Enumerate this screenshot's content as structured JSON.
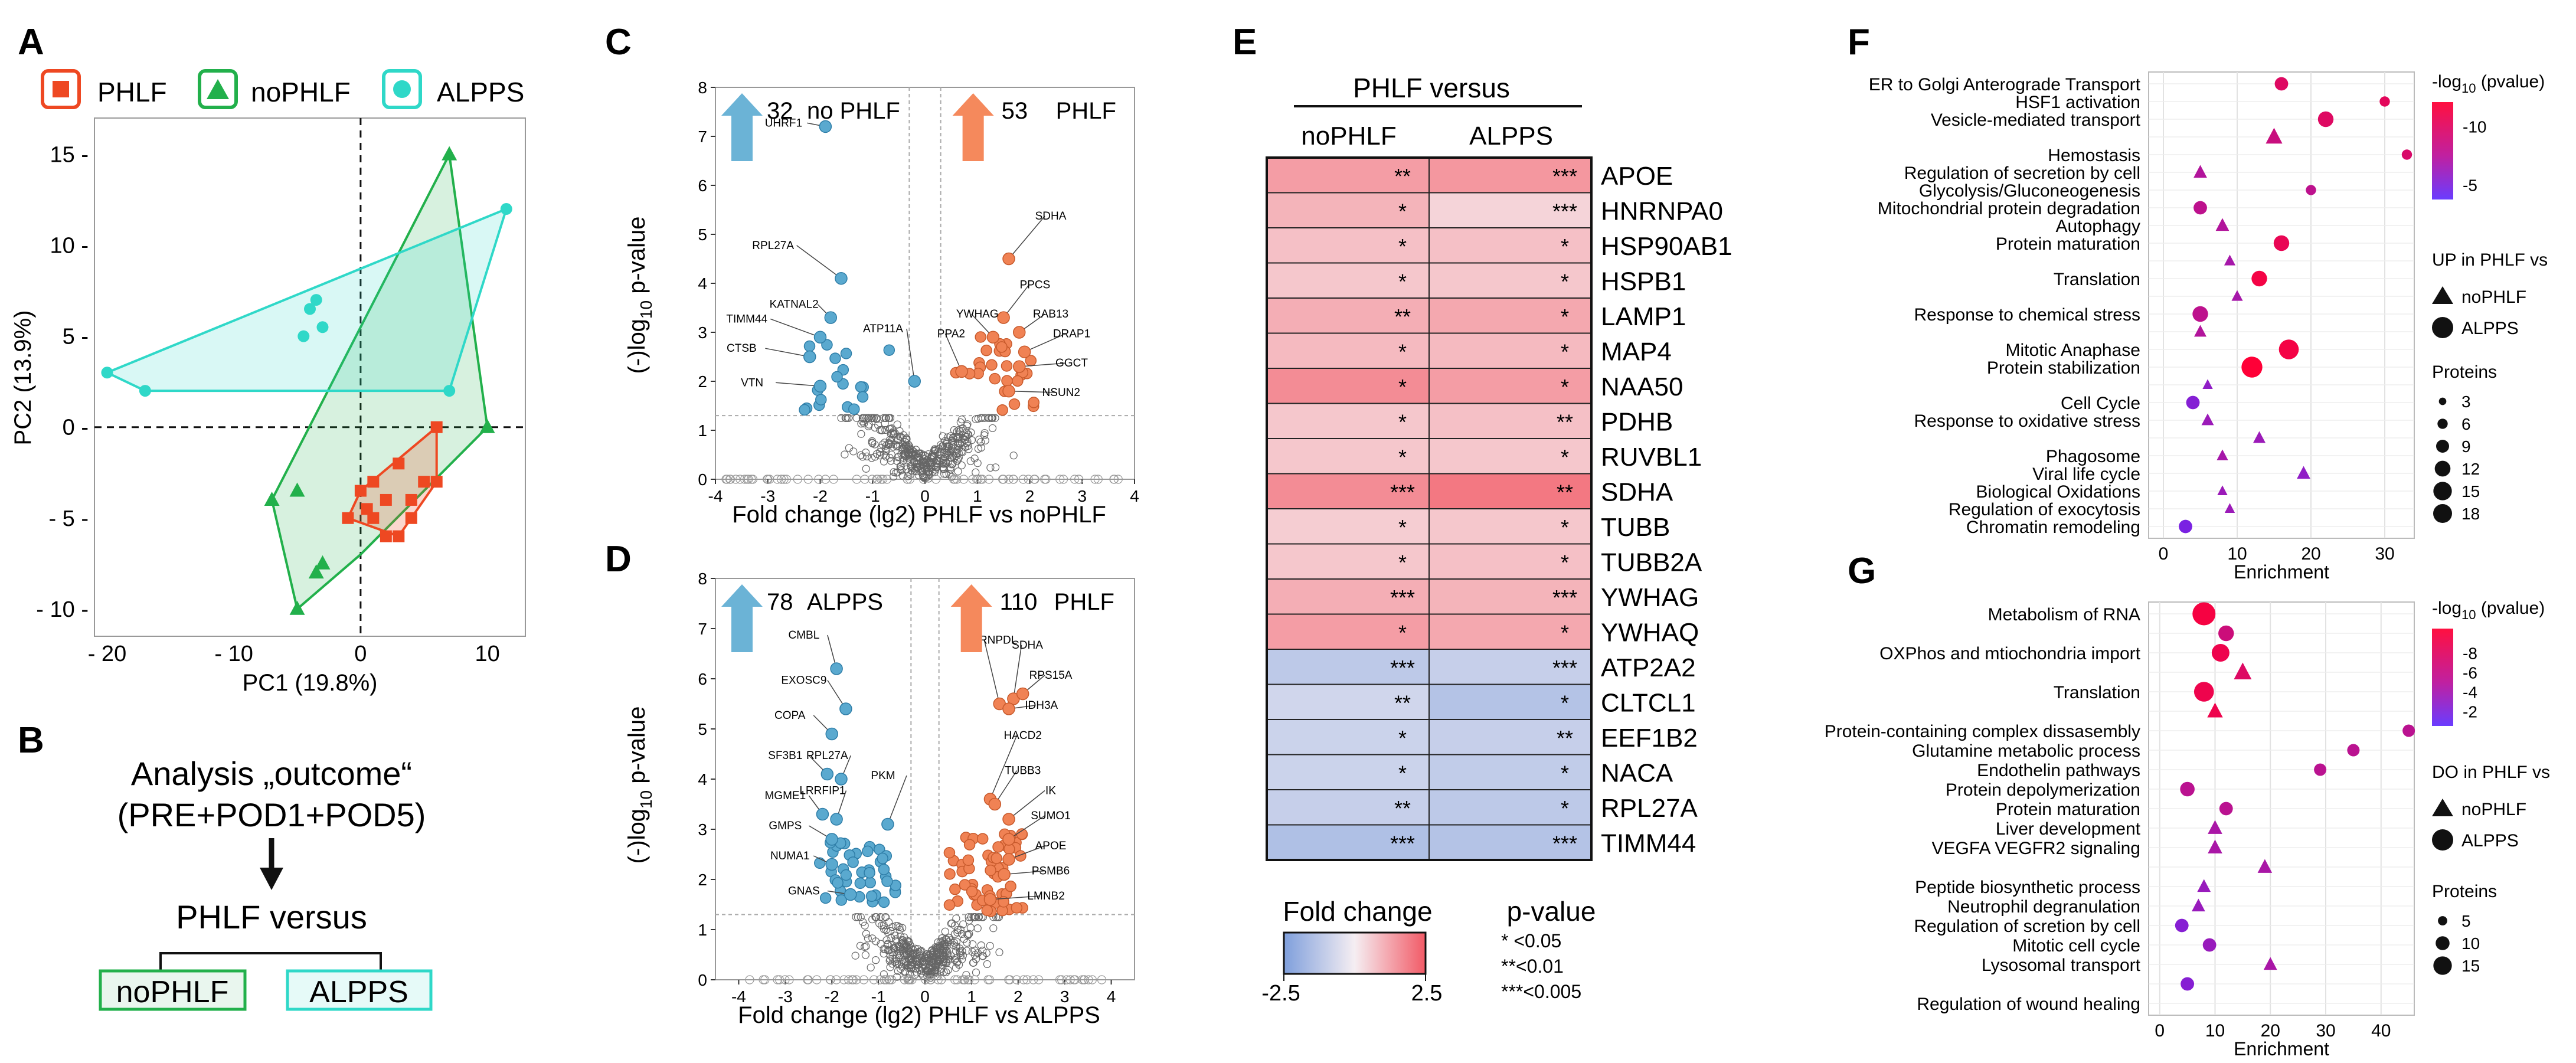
{
  "panelA": {
    "letter": "A",
    "legend": [
      "PHLF",
      "noPHLF",
      "ALPPS"
    ],
    "colors": {
      "PHLF": "#ee4822",
      "noPHLF": "#22b04b",
      "ALPPS": "#2fd8c8"
    },
    "xlabel": "PC1 (19.8%)",
    "ylabel": "PC2 (13.9%)",
    "xticks": [
      {
        "v": -20,
        "t": "- 20"
      },
      {
        "v": -10,
        "t": "- 10"
      },
      {
        "v": 0,
        "t": "0"
      },
      {
        "v": 10,
        "t": "10"
      }
    ],
    "yticks": [
      {
        "v": 15,
        "t": "15 -"
      },
      {
        "v": 10,
        "t": "10 -"
      },
      {
        "v": 5,
        "t": "5 -"
      },
      {
        "v": 0,
        "t": "0 -"
      },
      {
        "v": -5,
        "t": "- 5 -"
      },
      {
        "v": -10,
        "t": "- 10 -"
      }
    ],
    "xlim": [
      -21,
      13
    ],
    "ylim": [
      -11.5,
      17
    ],
    "hulls": {
      "noPHLF": [
        [
          -5,
          -10
        ],
        [
          -7,
          -4
        ],
        [
          7,
          15
        ],
        [
          10,
          0
        ],
        [
          0,
          -7
        ]
      ],
      "ALPPS": [
        [
          -20,
          3
        ],
        [
          -17,
          2
        ],
        [
          7,
          2
        ],
        [
          11.5,
          12
        ]
      ],
      "PHLF": [
        [
          0,
          -3.5
        ],
        [
          6,
          0
        ],
        [
          6,
          -3
        ],
        [
          3,
          -6
        ],
        [
          -1,
          -5
        ]
      ]
    },
    "points": {
      "PHLF": [
        [
          0,
          -3.5
        ],
        [
          1,
          -3
        ],
        [
          1,
          -5
        ],
        [
          2,
          -4
        ],
        [
          3,
          -2
        ],
        [
          2,
          -6
        ],
        [
          4,
          -5
        ],
        [
          5,
          -3
        ],
        [
          6,
          0
        ],
        [
          6,
          -3
        ],
        [
          3,
          -6
        ],
        [
          -1,
          -5
        ],
        [
          0.5,
          -4.5
        ],
        [
          4,
          -4
        ]
      ],
      "noPHLF": [
        [
          -5,
          -10
        ],
        [
          -7,
          -4
        ],
        [
          -5,
          -3.5
        ],
        [
          7,
          15
        ],
        [
          10,
          0
        ],
        [
          -3,
          -7.5
        ],
        [
          -3.5,
          -8
        ]
      ],
      "ALPPS": [
        [
          -20,
          3
        ],
        [
          -17,
          2
        ],
        [
          -4,
          6.5
        ],
        [
          -3.5,
          7
        ],
        [
          -4.5,
          5
        ],
        [
          -3,
          5.5
        ],
        [
          7,
          2
        ],
        [
          11.5,
          12
        ]
      ]
    }
  },
  "panelB": {
    "letter": "B",
    "line1": "Analysis „outcome“",
    "line2": "(PRE+POD1+POD5)",
    "versus": "PHLF versus",
    "left": "noPHLF",
    "right": "ALPPS"
  },
  "panelC": {
    "letter": "C",
    "downCount": "32",
    "downLabel": "no PHLF",
    "upCount": "53",
    "upLabel": "PHLF",
    "xlabel": "Fold change (lg2) PHLF vs noPHLF",
    "ylabel_prefix": "(-)log",
    "ylabel_sub": "10",
    "ylabel_suffix": " p-value",
    "xlim": [
      -4,
      4
    ],
    "ylim": [
      0,
      8
    ],
    "xticks": [
      -4,
      -3,
      -2,
      -1,
      0,
      1,
      2,
      3,
      4
    ],
    "yticks": [
      0,
      1,
      2,
      3,
      4,
      5,
      6,
      7,
      8
    ],
    "labels": [
      {
        "t": "UHRF1",
        "x": -1.9,
        "y": 7.2,
        "lx": -2.7,
        "ly": 7.2
      },
      {
        "t": "RPL27A",
        "x": -1.6,
        "y": 4.1,
        "lx": -2.9,
        "ly": 4.7
      },
      {
        "t": "KATNAL2",
        "x": -1.8,
        "y": 3.3,
        "lx": -2.5,
        "ly": 3.5
      },
      {
        "t": "TIMM44",
        "x": -2.0,
        "y": 2.9,
        "lx": -3.4,
        "ly": 3.2
      },
      {
        "t": "ATP11A",
        "x": -0.2,
        "y": 2.0,
        "lx": -0.8,
        "ly": 3.0
      },
      {
        "t": "CTSB",
        "x": -2.2,
        "y": 2.5,
        "lx": -3.5,
        "ly": 2.6
      },
      {
        "t": "VTN",
        "x": -2.0,
        "y": 1.9,
        "lx": -3.3,
        "ly": 1.9
      },
      {
        "t": "SDHA",
        "x": 1.6,
        "y": 4.5,
        "lx": 2.4,
        "ly": 5.3
      },
      {
        "t": "PPCS",
        "x": 1.5,
        "y": 3.3,
        "lx": 2.1,
        "ly": 3.9
      },
      {
        "t": "YWHAG",
        "x": 1.3,
        "y": 2.9,
        "lx": 1.0,
        "ly": 3.3
      },
      {
        "t": "RAB13",
        "x": 1.8,
        "y": 3.0,
        "lx": 2.4,
        "ly": 3.3
      },
      {
        "t": "PPA2",
        "x": 0.7,
        "y": 2.2,
        "lx": 0.5,
        "ly": 2.9
      },
      {
        "t": "DRAP1",
        "x": 1.9,
        "y": 2.6,
        "lx": 2.8,
        "ly": 2.9
      },
      {
        "t": "GGCT",
        "x": 1.8,
        "y": 2.3,
        "lx": 2.8,
        "ly": 2.3
      },
      {
        "t": "NSUN2",
        "x": 1.6,
        "y": 1.8,
        "lx": 2.6,
        "ly": 1.7
      }
    ]
  },
  "panelD": {
    "letter": "D",
    "downCount": "78",
    "downLabel": "ALPPS",
    "upCount": "110",
    "upLabel": "PHLF",
    "xlabel": "Fold change (lg2) PHLF vs ALPPS",
    "ylabel_prefix": "(-)log",
    "ylabel_sub": "10",
    "ylabel_suffix": " p-value",
    "xlim": [
      -4.5,
      4.5
    ],
    "ylim": [
      0,
      8
    ],
    "xticks": [
      -4,
      -3,
      -2,
      -1,
      0,
      1,
      2,
      3,
      4
    ],
    "yticks": [
      0,
      1,
      2,
      3,
      4,
      5,
      6,
      7,
      8
    ],
    "labels": [
      {
        "t": "CMBL",
        "x": -1.9,
        "y": 6.2,
        "lx": -2.6,
        "ly": 6.8
      },
      {
        "t": "EXOSC9",
        "x": -1.7,
        "y": 5.4,
        "lx": -2.6,
        "ly": 5.9
      },
      {
        "t": "COPA",
        "x": -2.0,
        "y": 4.9,
        "lx": -2.9,
        "ly": 5.2
      },
      {
        "t": "SF3B1",
        "x": -2.1,
        "y": 4.1,
        "lx": -3.0,
        "ly": 4.4
      },
      {
        "t": "RPL27A",
        "x": -1.8,
        "y": 4.0,
        "lx": -2.1,
        "ly": 4.4
      },
      {
        "t": "PKM",
        "x": -0.8,
        "y": 3.1,
        "lx": -0.9,
        "ly": 4.0
      },
      {
        "t": "MGME1",
        "x": -2.2,
        "y": 3.3,
        "lx": -3.0,
        "ly": 3.6
      },
      {
        "t": "LRRFIP1",
        "x": -1.9,
        "y": 3.2,
        "lx": -2.2,
        "ly": 3.7
      },
      {
        "t": "GMPS",
        "x": -2.0,
        "y": 2.8,
        "lx": -3.0,
        "ly": 3.0
      },
      {
        "t": "NUMA1",
        "x": -2.0,
        "y": 2.3,
        "lx": -2.9,
        "ly": 2.4
      },
      {
        "t": "GNAS",
        "x": -1.6,
        "y": 1.7,
        "lx": -2.6,
        "ly": 1.7
      },
      {
        "t": "HNRNPDL",
        "x": 1.6,
        "y": 5.5,
        "lx": 1.4,
        "ly": 6.7
      },
      {
        "t": "SDHA",
        "x": 1.9,
        "y": 5.6,
        "lx": 2.2,
        "ly": 6.6
      },
      {
        "t": "RPS15A",
        "x": 2.1,
        "y": 5.7,
        "lx": 2.7,
        "ly": 6.0
      },
      {
        "t": "IDH3A",
        "x": 1.8,
        "y": 5.4,
        "lx": 2.5,
        "ly": 5.4
      },
      {
        "t": "HACD2",
        "x": 1.4,
        "y": 3.6,
        "lx": 2.1,
        "ly": 4.8
      },
      {
        "t": "TUBB3",
        "x": 1.5,
        "y": 3.5,
        "lx": 2.1,
        "ly": 4.1
      },
      {
        "t": "IK",
        "x": 1.8,
        "y": 3.2,
        "lx": 2.7,
        "ly": 3.7
      },
      {
        "t": "SUMO1",
        "x": 1.8,
        "y": 2.8,
        "lx": 2.7,
        "ly": 3.2
      },
      {
        "t": "APOE",
        "x": 1.8,
        "y": 2.4,
        "lx": 2.7,
        "ly": 2.6
      },
      {
        "t": "PSMB6",
        "x": 1.7,
        "y": 2.1,
        "lx": 2.7,
        "ly": 2.1
      },
      {
        "t": "LMNB2",
        "x": 1.4,
        "y": 1.6,
        "lx": 2.6,
        "ly": 1.6
      }
    ]
  },
  "panelE": {
    "letter": "E",
    "title": "PHLF versus",
    "columns": [
      "noPHLF",
      "ALPPS"
    ],
    "rows": [
      {
        "g": "APOE",
        "v": [
          1.2,
          1.3
        ],
        "s": [
          "**",
          "***"
        ]
      },
      {
        "g": "HNRNPA0",
        "v": [
          0.8,
          0.3
        ],
        "s": [
          "*",
          "***"
        ]
      },
      {
        "g": "HSP90AB1",
        "v": [
          0.6,
          0.6
        ],
        "s": [
          "*",
          "*"
        ]
      },
      {
        "g": "HSPB1",
        "v": [
          0.5,
          0.5
        ],
        "s": [
          "*",
          "*"
        ]
      },
      {
        "g": "LAMP1",
        "v": [
          0.9,
          1.0
        ],
        "s": [
          "**",
          "*"
        ]
      },
      {
        "g": "MAP4",
        "v": [
          0.7,
          0.7
        ],
        "s": [
          "*",
          "*"
        ]
      },
      {
        "g": "NAA50",
        "v": [
          1.5,
          1.2
        ],
        "s": [
          "*",
          "*"
        ]
      },
      {
        "g": "PDHB",
        "v": [
          0.5,
          0.6
        ],
        "s": [
          "*",
          "**"
        ]
      },
      {
        "g": "RUVBL1",
        "v": [
          0.5,
          0.5
        ],
        "s": [
          "*",
          "*"
        ]
      },
      {
        "g": "SDHA",
        "v": [
          1.5,
          1.9
        ],
        "s": [
          "***",
          "**"
        ]
      },
      {
        "g": "TUBB",
        "v": [
          0.4,
          0.5
        ],
        "s": [
          "*",
          "*"
        ]
      },
      {
        "g": "TUBB2A",
        "v": [
          0.5,
          0.6
        ],
        "s": [
          "*",
          "*"
        ]
      },
      {
        "g": "YWHAG",
        "v": [
          0.9,
          0.8
        ],
        "s": [
          "***",
          "***"
        ]
      },
      {
        "g": "YWHAQ",
        "v": [
          1.2,
          1.0
        ],
        "s": [
          "*",
          "*"
        ]
      },
      {
        "g": "ATP2A2",
        "v": [
          -1.0,
          -0.8
        ],
        "s": [
          "***",
          "***"
        ]
      },
      {
        "g": "CLTCL1",
        "v": [
          -0.6,
          -1.2
        ],
        "s": [
          "**",
          "*"
        ]
      },
      {
        "g": "EEF1B2",
        "v": [
          -0.7,
          -0.8
        ],
        "s": [
          "*",
          "**"
        ]
      },
      {
        "g": "NACA",
        "v": [
          -0.7,
          -0.9
        ],
        "s": [
          "*",
          "*"
        ]
      },
      {
        "g": "RPL27A",
        "v": [
          -0.8,
          -1.0
        ],
        "s": [
          "**",
          "*"
        ]
      },
      {
        "g": "TIMM44",
        "v": [
          -1.3,
          -1.2
        ],
        "s": [
          "***",
          "***"
        ]
      }
    ],
    "fc_title": "Fold change",
    "fc_min": "-2.5",
    "fc_max": "2.5",
    "p_title": "p-value",
    "p_items": [
      "* <0.05",
      "**<0.01",
      "***<0.005"
    ]
  },
  "panelF": {
    "letter": "F",
    "xlabel": "Enrichment",
    "xlim": [
      -2,
      34
    ],
    "xticks": [
      0,
      10,
      20,
      30
    ],
    "cbar_prefix": "-log",
    "cbar_sub": "10",
    "cbar_suffix": " (pvalue)",
    "cbar_ticks": [
      "-10",
      "-5"
    ],
    "shape_title": "UP in PHLF vs",
    "shape_items": [
      "noPHLF",
      "ALPPS"
    ],
    "size_title": "Proteins",
    "size_items": [
      "3",
      "6",
      "9",
      "12",
      "15",
      "18"
    ],
    "terms": [
      {
        "t": "ER to Golgi Anterograde Transport",
        "x": 16,
        "s": "c",
        "n": 6,
        "p": 11
      },
      {
        "t": "HSF1 activation",
        "x": 30,
        "s": "c",
        "n": 3,
        "p": 11.5
      },
      {
        "t": "Vesicle-mediated transport",
        "x": 22,
        "s": "c",
        "n": 8,
        "p": 11
      },
      {
        "t": "",
        "x": 15,
        "s": "t",
        "n": 9,
        "p": 9
      },
      {
        "t": "Hemostasis",
        "x": 33,
        "s": "c",
        "n": 3,
        "p": 10.5
      },
      {
        "t": "Regulation of secretion by cell",
        "x": 5,
        "s": "t",
        "n": 6,
        "p": 7
      },
      {
        "t": "Glycolysis/Gluconeogenesis",
        "x": 20,
        "s": "c",
        "n": 3,
        "p": 8
      },
      {
        "t": "Mitochondrial protein degradation",
        "x": 5,
        "s": "c",
        "n": 6,
        "p": 8
      },
      {
        "t": "Autophagy",
        "x": 8,
        "s": "t",
        "n": 6,
        "p": 7
      },
      {
        "t": "Protein maturation",
        "x": 16,
        "s": "c",
        "n": 8,
        "p": 12
      },
      {
        "t": "",
        "x": 9,
        "s": "t",
        "n": 4,
        "p": 6
      },
      {
        "t": "Translation",
        "x": 13,
        "s": "c",
        "n": 8,
        "p": 13
      },
      {
        "t": "",
        "x": 10,
        "s": "t",
        "n": 4,
        "p": 6
      },
      {
        "t": "Response to chemical stress",
        "x": 5,
        "s": "c",
        "n": 8,
        "p": 8
      },
      {
        "t": "",
        "x": 5,
        "s": "t",
        "n": 5,
        "p": 7
      },
      {
        "t": "Mitotic Anaphase",
        "x": 17,
        "s": "c",
        "n": 12,
        "p": 13
      },
      {
        "t": "Protein stabilization",
        "x": 12,
        "s": "c",
        "n": 13,
        "p": 14
      },
      {
        "t": "",
        "x": 6,
        "s": "t",
        "n": 3,
        "p": 4
      },
      {
        "t": "Cell Cycle",
        "x": 4,
        "s": "c",
        "n": 6,
        "p": 3
      },
      {
        "t": "Response to oxidative stress",
        "x": 6,
        "s": "t",
        "n": 5,
        "p": 5
      },
      {
        "t": "",
        "x": 13,
        "s": "t",
        "n": 5,
        "p": 5
      },
      {
        "t": "Phagosome",
        "x": 8,
        "s": "t",
        "n": 4,
        "p": 6
      },
      {
        "t": "Viral life cycle",
        "x": 19,
        "s": "t",
        "n": 6,
        "p": 4
      },
      {
        "t": "Biological Oxidations",
        "x": 8,
        "s": "t",
        "n": 3,
        "p": 5
      },
      {
        "t": "Regulation of exocytosis",
        "x": 9,
        "s": "t",
        "n": 3,
        "p": 5
      },
      {
        "t": "Chromatin remodeling",
        "x": 3,
        "s": "c",
        "n": 6,
        "p": 2
      }
    ]
  },
  "panelG": {
    "letter": "G",
    "xlabel": "Enrichment",
    "xlim": [
      -2,
      46
    ],
    "xticks": [
      0,
      10,
      20,
      30,
      40
    ],
    "cbar_prefix": "-log",
    "cbar_sub": "10",
    "cbar_suffix": " (pvalue)",
    "cbar_ticks": [
      "-8",
      "-6",
      "-4",
      "-2"
    ],
    "shape_title": "DO in PHLF vs",
    "shape_items": [
      "noPHLF",
      "ALPPS"
    ],
    "size_title": "Proteins",
    "size_items": [
      "5",
      "10",
      "15"
    ],
    "terms": [
      {
        "t": "Metabolism of RNA",
        "x": 8,
        "s": "c",
        "n": 15,
        "p": 8.5
      },
      {
        "t": "",
        "x": 12,
        "s": "c",
        "n": 8,
        "p": 6
      },
      {
        "t": "OXPhos and mtiochondria import",
        "x": 11,
        "s": "c",
        "n": 10,
        "p": 8
      },
      {
        "t": "",
        "x": 15,
        "s": "t",
        "n": 10,
        "p": 7
      },
      {
        "t": "Translation",
        "x": 8,
        "s": "c",
        "n": 12,
        "p": 8
      },
      {
        "t": "",
        "x": 10,
        "s": "t",
        "n": 8,
        "p": 8
      },
      {
        "t": "Protein-containing complex dissasembly",
        "x": 45,
        "s": "c",
        "n": 5,
        "p": 5
      },
      {
        "t": "Glutamine metabolic process",
        "x": 35,
        "s": "c",
        "n": 5,
        "p": 5
      },
      {
        "t": "Endothelin pathways",
        "x": 29,
        "s": "c",
        "n": 5,
        "p": 5
      },
      {
        "t": "Protein depolymerization",
        "x": 5,
        "s": "c",
        "n": 7,
        "p": 5
      },
      {
        "t": "Protein maturation",
        "x": 12,
        "s": "c",
        "n": 6,
        "p": 5
      },
      {
        "t": "Liver development",
        "x": 10,
        "s": "t",
        "n": 7,
        "p": 4
      },
      {
        "t": "VEGFA VEGFR2 signaling",
        "x": 10,
        "s": "t",
        "n": 7,
        "p": 4
      },
      {
        "t": "",
        "x": 19,
        "s": "t",
        "n": 7,
        "p": 4
      },
      {
        "t": "Peptide biosynthetic process",
        "x": 8,
        "s": "t",
        "n": 6,
        "p": 3
      },
      {
        "t": "Neutrophil degranulation",
        "x": 7,
        "s": "t",
        "n": 6,
        "p": 3
      },
      {
        "t": "Regulation of scretion by cell",
        "x": 4,
        "s": "c",
        "n": 6,
        "p": 2
      },
      {
        "t": "Mitotic cell cycle",
        "x": 9,
        "s": "c",
        "n": 6,
        "p": 3
      },
      {
        "t": "Lysosomal transport",
        "x": 20,
        "s": "t",
        "n": 6,
        "p": 4
      },
      {
        "t": "",
        "x": 5,
        "s": "c",
        "n": 6,
        "p": 2
      },
      {
        "t": "Regulation of wound healing",
        "x": "",
        "s": "",
        "n": 0,
        "p": 0
      }
    ]
  }
}
